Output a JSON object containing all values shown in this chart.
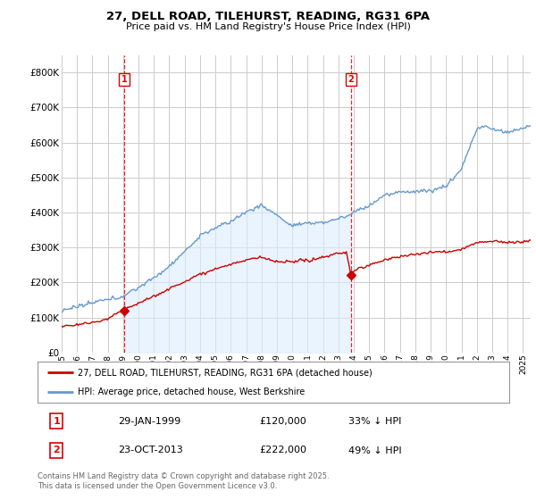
{
  "title": "27, DELL ROAD, TILEHURST, READING, RG31 6PA",
  "subtitle": "Price paid vs. HM Land Registry's House Price Index (HPI)",
  "legend_line1": "27, DELL ROAD, TILEHURST, READING, RG31 6PA (detached house)",
  "legend_line2": "HPI: Average price, detached house, West Berkshire",
  "footnote": "Contains HM Land Registry data © Crown copyright and database right 2025.\nThis data is licensed under the Open Government Licence v3.0.",
  "sale1_label": "1",
  "sale1_date": "29-JAN-1999",
  "sale1_price": "£120,000",
  "sale1_hpi": "33% ↓ HPI",
  "sale2_label": "2",
  "sale2_date": "23-OCT-2013",
  "sale2_price": "£222,000",
  "sale2_hpi": "49% ↓ HPI",
  "red_color": "#cc0000",
  "blue_color": "#6699cc",
  "blue_fill": "#ddeeff",
  "vline_color": "#dd0000",
  "grid_color": "#cccccc",
  "background_color": "#ffffff",
  "ylim": [
    0,
    850000
  ],
  "yticks": [
    0,
    100000,
    200000,
    300000,
    400000,
    500000,
    600000,
    700000,
    800000
  ],
  "sale1_x": 1999.08,
  "sale1_y": 120000,
  "sale2_x": 2013.81,
  "sale2_y": 222000,
  "xmin": 1995.0,
  "xmax": 2025.5
}
